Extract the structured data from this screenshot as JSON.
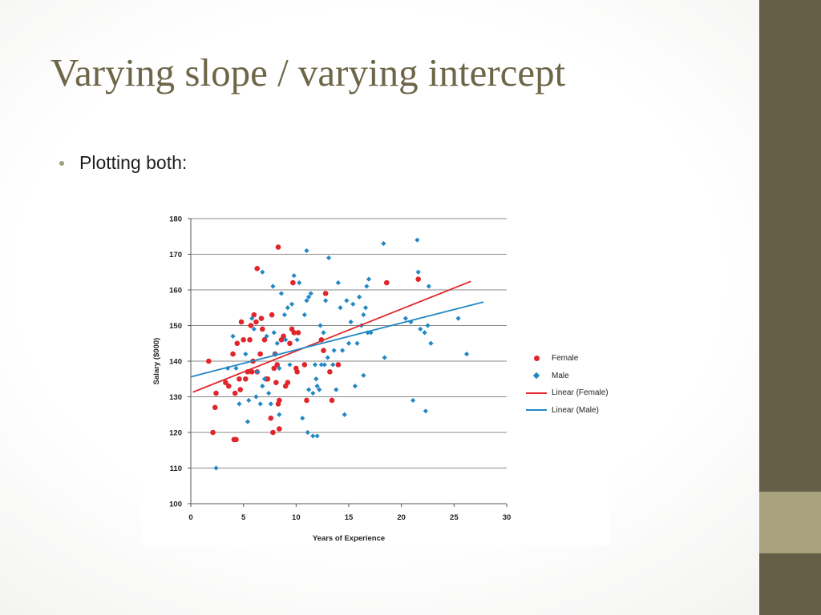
{
  "slide": {
    "title": "Varying slope / varying intercept",
    "bullet": "Plotting both:"
  },
  "theme": {
    "sidebar_color": "#665f48",
    "sidebar_accent_color": "#a7a27b",
    "title_color": "#6e6648"
  },
  "chart_data": {
    "type": "scatter",
    "xlabel": "Years of Experience",
    "ylabel": "Salary ($000)",
    "xlim": [
      0,
      30
    ],
    "ylim": [
      100,
      180
    ],
    "xticks": [
      0,
      5,
      10,
      15,
      20,
      25,
      30
    ],
    "yticks": [
      100,
      110,
      120,
      130,
      140,
      150,
      160,
      170,
      180
    ],
    "grid": "horizontal",
    "legend_position": "right",
    "series": [
      {
        "name": "Female",
        "marker": "circle",
        "color": "#e0262b",
        "points": [
          [
            1.7,
            140
          ],
          [
            2.1,
            120
          ],
          [
            2.3,
            127
          ],
          [
            2.4,
            131
          ],
          [
            3.3,
            134
          ],
          [
            3.6,
            133
          ],
          [
            4.0,
            142
          ],
          [
            4.1,
            118
          ],
          [
            4.2,
            131
          ],
          [
            4.3,
            118
          ],
          [
            4.4,
            145
          ],
          [
            4.6,
            135
          ],
          [
            4.7,
            132
          ],
          [
            4.8,
            151
          ],
          [
            5.0,
            146
          ],
          [
            5.2,
            135
          ],
          [
            5.4,
            137
          ],
          [
            5.6,
            146
          ],
          [
            5.7,
            150
          ],
          [
            5.8,
            137
          ],
          [
            5.9,
            140
          ],
          [
            6.0,
            153
          ],
          [
            6.2,
            151
          ],
          [
            6.3,
            166
          ],
          [
            6.3,
            137
          ],
          [
            6.6,
            142
          ],
          [
            6.7,
            152
          ],
          [
            6.8,
            149
          ],
          [
            7.0,
            146
          ],
          [
            7.2,
            135
          ],
          [
            7.3,
            135
          ],
          [
            7.6,
            124
          ],
          [
            7.7,
            153
          ],
          [
            7.8,
            120
          ],
          [
            7.9,
            138
          ],
          [
            8.0,
            142
          ],
          [
            8.1,
            134
          ],
          [
            8.2,
            139
          ],
          [
            8.3,
            172
          ],
          [
            8.3,
            128
          ],
          [
            8.4,
            121
          ],
          [
            8.4,
            129
          ],
          [
            8.6,
            146
          ],
          [
            8.8,
            147
          ],
          [
            9.0,
            133
          ],
          [
            9.2,
            134
          ],
          [
            9.4,
            145
          ],
          [
            9.6,
            149
          ],
          [
            9.7,
            162
          ],
          [
            9.8,
            148
          ],
          [
            10.0,
            138
          ],
          [
            10.1,
            137
          ],
          [
            10.2,
            148
          ],
          [
            10.8,
            139
          ],
          [
            11.0,
            129
          ],
          [
            12.4,
            146
          ],
          [
            12.6,
            143
          ],
          [
            12.8,
            159
          ],
          [
            13.2,
            137
          ],
          [
            13.4,
            129
          ],
          [
            14.0,
            139
          ],
          [
            18.6,
            162
          ],
          [
            21.6,
            163
          ]
        ]
      },
      {
        "name": "Male",
        "marker": "diamond",
        "color": "#2288c4",
        "points": [
          [
            2.4,
            110
          ],
          [
            3.5,
            138
          ],
          [
            4.0,
            147
          ],
          [
            4.3,
            138
          ],
          [
            4.6,
            128
          ],
          [
            5.2,
            142
          ],
          [
            5.4,
            123
          ],
          [
            5.5,
            129
          ],
          [
            5.8,
            152
          ],
          [
            6.0,
            149
          ],
          [
            6.2,
            130
          ],
          [
            6.3,
            137
          ],
          [
            6.6,
            128
          ],
          [
            6.8,
            133
          ],
          [
            6.8,
            165
          ],
          [
            7.0,
            135
          ],
          [
            7.2,
            147
          ],
          [
            7.4,
            131
          ],
          [
            7.6,
            128
          ],
          [
            7.8,
            161
          ],
          [
            7.9,
            148
          ],
          [
            8.0,
            142
          ],
          [
            8.2,
            145
          ],
          [
            8.4,
            138
          ],
          [
            8.4,
            125
          ],
          [
            8.6,
            159
          ],
          [
            8.9,
            153
          ],
          [
            9.0,
            146
          ],
          [
            9.2,
            155
          ],
          [
            9.4,
            139
          ],
          [
            9.6,
            156
          ],
          [
            9.8,
            164
          ],
          [
            10.1,
            146
          ],
          [
            10.3,
            162
          ],
          [
            10.6,
            124
          ],
          [
            10.8,
            153
          ],
          [
            11.0,
            171
          ],
          [
            11.0,
            157
          ],
          [
            11.1,
            120
          ],
          [
            11.2,
            132
          ],
          [
            11.2,
            158
          ],
          [
            11.4,
            159
          ],
          [
            11.6,
            131
          ],
          [
            11.6,
            119
          ],
          [
            11.8,
            139
          ],
          [
            11.9,
            135
          ],
          [
            12.0,
            133
          ],
          [
            12.0,
            119
          ],
          [
            12.2,
            132
          ],
          [
            12.3,
            150
          ],
          [
            12.4,
            139
          ],
          [
            12.6,
            148
          ],
          [
            12.7,
            139
          ],
          [
            12.8,
            157
          ],
          [
            13.0,
            141
          ],
          [
            13.1,
            169
          ],
          [
            13.5,
            139
          ],
          [
            13.6,
            143
          ],
          [
            13.8,
            132
          ],
          [
            14.0,
            162
          ],
          [
            14.2,
            155
          ],
          [
            14.4,
            143
          ],
          [
            14.6,
            125
          ],
          [
            14.8,
            157
          ],
          [
            15.0,
            145
          ],
          [
            15.2,
            151
          ],
          [
            15.4,
            156
          ],
          [
            15.6,
            133
          ],
          [
            15.8,
            145
          ],
          [
            16.0,
            158
          ],
          [
            16.2,
            150
          ],
          [
            16.4,
            136
          ],
          [
            16.4,
            153
          ],
          [
            16.6,
            155
          ],
          [
            16.7,
            161
          ],
          [
            16.8,
            148
          ],
          [
            16.9,
            163
          ],
          [
            17.1,
            148
          ],
          [
            18.3,
            173
          ],
          [
            18.4,
            141
          ],
          [
            20.4,
            152
          ],
          [
            20.9,
            151
          ],
          [
            21.1,
            129
          ],
          [
            21.5,
            174
          ],
          [
            21.6,
            165
          ],
          [
            21.8,
            149
          ],
          [
            22.2,
            148
          ],
          [
            22.3,
            126
          ],
          [
            22.5,
            150
          ],
          [
            22.6,
            161
          ],
          [
            22.8,
            145
          ],
          [
            25.4,
            152
          ],
          [
            26.2,
            142
          ]
        ]
      }
    ],
    "trendlines": [
      {
        "name": "Linear (Female)",
        "color": "#e0262b",
        "x": [
          0.2,
          26.6
        ],
        "y": [
          131.3,
          162.4
        ]
      },
      {
        "name": "Linear (Male)",
        "color": "#2288c4",
        "x": [
          0.0,
          27.8
        ],
        "y": [
          135.6,
          156.6
        ]
      }
    ]
  }
}
